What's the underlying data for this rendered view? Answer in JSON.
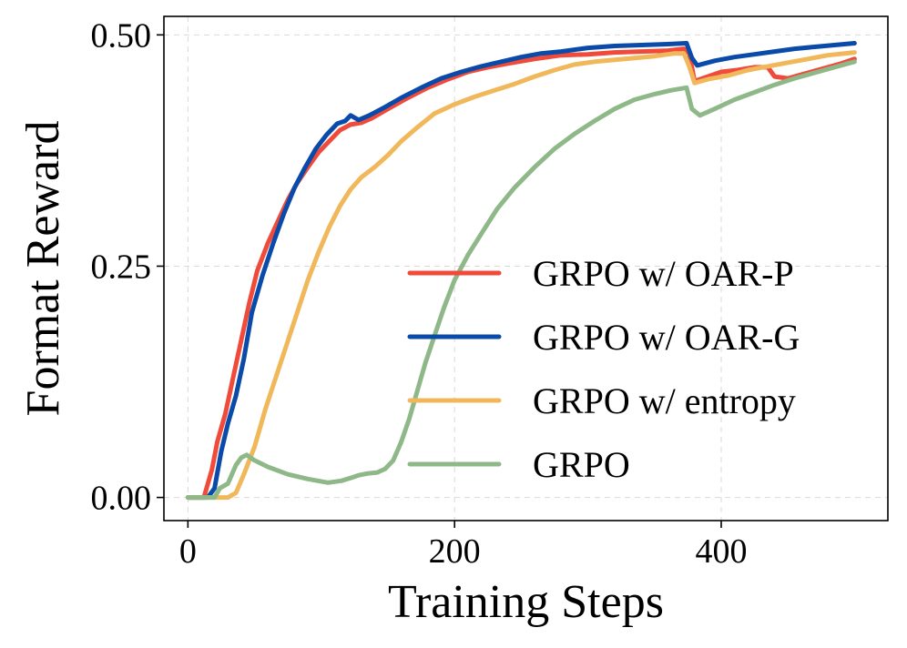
{
  "chart_data": {
    "type": "line",
    "title": "",
    "xlabel": "Training Steps",
    "ylabel": "Format Reward",
    "xlim": [
      -18,
      525
    ],
    "ylim": [
      -0.025,
      0.52
    ],
    "xticks": [
      0,
      200,
      400
    ],
    "yticks": [
      0.0,
      0.25,
      0.5
    ],
    "xtick_labels": [
      "0",
      "200",
      "400"
    ],
    "ytick_labels": [
      "0.00",
      "0.25",
      "0.50"
    ],
    "grid": true,
    "legend_position": "lower-right",
    "series": [
      {
        "name": "GRPO w/ OAR-P",
        "color": "#f04a3a",
        "points": [
          [
            0,
            0
          ],
          [
            12,
            0
          ],
          [
            18,
            0.03
          ],
          [
            22,
            0.06
          ],
          [
            28,
            0.09
          ],
          [
            34,
            0.13
          ],
          [
            40,
            0.17
          ],
          [
            46,
            0.21
          ],
          [
            52,
            0.245
          ],
          [
            60,
            0.275
          ],
          [
            68,
            0.3
          ],
          [
            75,
            0.322
          ],
          [
            82,
            0.34
          ],
          [
            90,
            0.357
          ],
          [
            98,
            0.373
          ],
          [
            106,
            0.385
          ],
          [
            114,
            0.397
          ],
          [
            122,
            0.403
          ],
          [
            130,
            0.405
          ],
          [
            138,
            0.41
          ],
          [
            150,
            0.42
          ],
          [
            165,
            0.432
          ],
          [
            180,
            0.443
          ],
          [
            195,
            0.452
          ],
          [
            210,
            0.46
          ],
          [
            225,
            0.465
          ],
          [
            240,
            0.469
          ],
          [
            260,
            0.474
          ],
          [
            280,
            0.478
          ],
          [
            300,
            0.479
          ],
          [
            320,
            0.481
          ],
          [
            340,
            0.482
          ],
          [
            360,
            0.483
          ],
          [
            372,
            0.485
          ],
          [
            376,
            0.48
          ],
          [
            380,
            0.45
          ],
          [
            390,
            0.455
          ],
          [
            400,
            0.46
          ],
          [
            412,
            0.462
          ],
          [
            425,
            0.465
          ],
          [
            435,
            0.465
          ],
          [
            440,
            0.455
          ],
          [
            450,
            0.453
          ],
          [
            460,
            0.457
          ],
          [
            475,
            0.463
          ],
          [
            490,
            0.469
          ],
          [
            500,
            0.474
          ]
        ]
      },
      {
        "name": "GRPO w/ OAR-G",
        "color": "#0a4aa8",
        "points": [
          [
            0,
            0
          ],
          [
            15,
            0
          ],
          [
            20,
            0.01
          ],
          [
            25,
            0.05
          ],
          [
            30,
            0.08
          ],
          [
            36,
            0.11
          ],
          [
            42,
            0.15
          ],
          [
            48,
            0.2
          ],
          [
            56,
            0.24
          ],
          [
            64,
            0.275
          ],
          [
            72,
            0.307
          ],
          [
            80,
            0.335
          ],
          [
            88,
            0.357
          ],
          [
            96,
            0.377
          ],
          [
            104,
            0.392
          ],
          [
            112,
            0.404
          ],
          [
            118,
            0.407
          ],
          [
            122,
            0.413
          ],
          [
            128,
            0.408
          ],
          [
            136,
            0.413
          ],
          [
            148,
            0.422
          ],
          [
            160,
            0.432
          ],
          [
            175,
            0.443
          ],
          [
            190,
            0.453
          ],
          [
            205,
            0.46
          ],
          [
            220,
            0.466
          ],
          [
            235,
            0.471
          ],
          [
            250,
            0.476
          ],
          [
            265,
            0.48
          ],
          [
            280,
            0.482
          ],
          [
            290,
            0.484
          ],
          [
            300,
            0.486
          ],
          [
            320,
            0.488
          ],
          [
            340,
            0.489
          ],
          [
            360,
            0.49
          ],
          [
            374,
            0.491
          ],
          [
            378,
            0.475
          ],
          [
            382,
            0.467
          ],
          [
            395,
            0.472
          ],
          [
            410,
            0.476
          ],
          [
            425,
            0.479
          ],
          [
            440,
            0.482
          ],
          [
            455,
            0.485
          ],
          [
            470,
            0.487
          ],
          [
            485,
            0.489
          ],
          [
            500,
            0.491
          ]
        ]
      },
      {
        "name": "GRPO w/ entropy",
        "color": "#f0b85a",
        "points": [
          [
            0,
            0
          ],
          [
            30,
            0
          ],
          [
            36,
            0.005
          ],
          [
            42,
            0.025
          ],
          [
            50,
            0.055
          ],
          [
            58,
            0.095
          ],
          [
            66,
            0.13
          ],
          [
            74,
            0.165
          ],
          [
            82,
            0.2
          ],
          [
            90,
            0.235
          ],
          [
            98,
            0.265
          ],
          [
            106,
            0.292
          ],
          [
            114,
            0.315
          ],
          [
            122,
            0.333
          ],
          [
            130,
            0.346
          ],
          [
            140,
            0.357
          ],
          [
            150,
            0.37
          ],
          [
            160,
            0.385
          ],
          [
            172,
            0.4
          ],
          [
            185,
            0.415
          ],
          [
            200,
            0.425
          ],
          [
            215,
            0.433
          ],
          [
            230,
            0.44
          ],
          [
            245,
            0.447
          ],
          [
            260,
            0.455
          ],
          [
            275,
            0.462
          ],
          [
            290,
            0.468
          ],
          [
            305,
            0.471
          ],
          [
            320,
            0.473
          ],
          [
            335,
            0.475
          ],
          [
            350,
            0.477
          ],
          [
            365,
            0.48
          ],
          [
            372,
            0.48
          ],
          [
            376,
            0.466
          ],
          [
            380,
            0.448
          ],
          [
            390,
            0.452
          ],
          [
            405,
            0.456
          ],
          [
            420,
            0.462
          ],
          [
            435,
            0.466
          ],
          [
            450,
            0.47
          ],
          [
            465,
            0.474
          ],
          [
            480,
            0.478
          ],
          [
            500,
            0.481
          ]
        ]
      },
      {
        "name": "GRPO",
        "color": "#8fb889",
        "points": [
          [
            0,
            0
          ],
          [
            20,
            0
          ],
          [
            24,
            0.01
          ],
          [
            30,
            0.015
          ],
          [
            36,
            0.035
          ],
          [
            40,
            0.043
          ],
          [
            44,
            0.046
          ],
          [
            50,
            0.04
          ],
          [
            60,
            0.033
          ],
          [
            75,
            0.025
          ],
          [
            90,
            0.02
          ],
          [
            105,
            0.016
          ],
          [
            115,
            0.018
          ],
          [
            122,
            0.021
          ],
          [
            128,
            0.024
          ],
          [
            135,
            0.026
          ],
          [
            142,
            0.027
          ],
          [
            148,
            0.031
          ],
          [
            154,
            0.04
          ],
          [
            160,
            0.06
          ],
          [
            166,
            0.085
          ],
          [
            172,
            0.115
          ],
          [
            178,
            0.145
          ],
          [
            185,
            0.175
          ],
          [
            192,
            0.205
          ],
          [
            200,
            0.235
          ],
          [
            210,
            0.262
          ],
          [
            220,
            0.285
          ],
          [
            232,
            0.312
          ],
          [
            245,
            0.335
          ],
          [
            260,
            0.357
          ],
          [
            275,
            0.377
          ],
          [
            290,
            0.393
          ],
          [
            305,
            0.407
          ],
          [
            320,
            0.42
          ],
          [
            335,
            0.43
          ],
          [
            350,
            0.436
          ],
          [
            362,
            0.44
          ],
          [
            370,
            0.442
          ],
          [
            374,
            0.443
          ],
          [
            378,
            0.42
          ],
          [
            384,
            0.413
          ],
          [
            395,
            0.42
          ],
          [
            410,
            0.43
          ],
          [
            425,
            0.438
          ],
          [
            440,
            0.446
          ],
          [
            455,
            0.453
          ],
          [
            470,
            0.459
          ],
          [
            485,
            0.465
          ],
          [
            500,
            0.471
          ]
        ]
      }
    ]
  }
}
